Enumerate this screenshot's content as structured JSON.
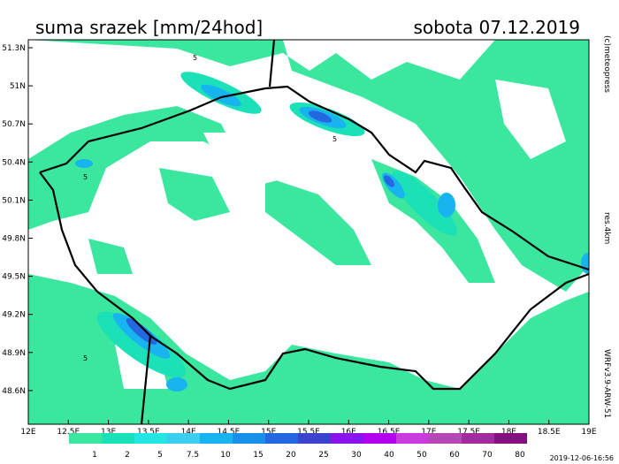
{
  "header": {
    "title": "suma srazek [mm/24hod]",
    "date": "sobota 07.12.2019"
  },
  "lat_labels": [
    "51.3N",
    "51N",
    "50.7N",
    "50.4N",
    "50.1N",
    "49.8N",
    "49.5N",
    "49.2N",
    "48.9N",
    "48.6N"
  ],
  "lon_labels": [
    "12E",
    "12.5E",
    "13E",
    "13.5E",
    "14E",
    "14.5E",
    "15E",
    "15.5E",
    "16E",
    "16.5E",
    "17E",
    "17.5E",
    "18E",
    "18.5E",
    "19E"
  ],
  "contour_labels": [
    "5",
    "5",
    "5",
    "5"
  ],
  "colorbar": {
    "labels": [
      "1",
      "2",
      "5",
      "7.5",
      "10",
      "15",
      "20",
      "25",
      "30",
      "40",
      "50",
      "60",
      "70",
      "80"
    ],
    "colors": [
      "#3be69e",
      "#1ce0b8",
      "#25e4e4",
      "#3ccdf0",
      "#18b4f0",
      "#1890e8",
      "#2468e0",
      "#3c44cc",
      "#8c14ec",
      "#b400f0",
      "#c83cdc",
      "#b448b4",
      "#a02ca0",
      "#82107e"
    ]
  },
  "side": {
    "copyright": "(c)meteopress",
    "resolution": "res.4km",
    "model": "WRFv3.9-ARW-51"
  },
  "timestamp": "2019-12-06-16:56"
}
